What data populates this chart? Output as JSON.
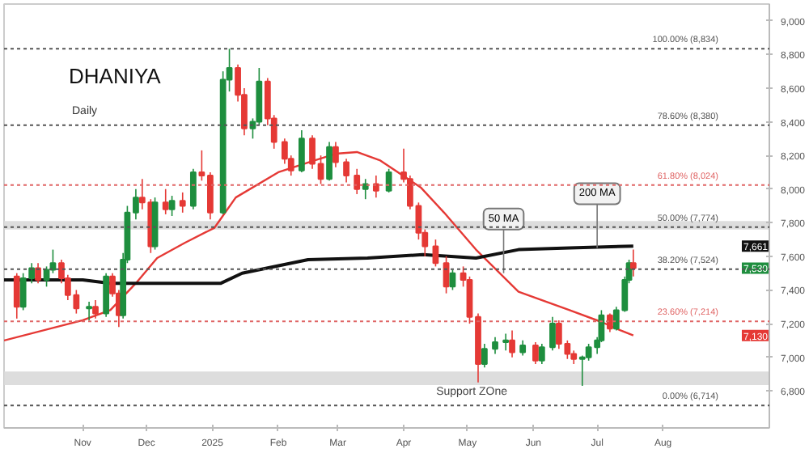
{
  "chart_data": {
    "type": "candlestick",
    "title": "DHANIYA",
    "subtitle": "Daily",
    "x": [
      "2024-10-01",
      "2024-10-04",
      "2024-10-08",
      "2024-10-11",
      "2024-10-15",
      "2024-10-18",
      "2024-10-22",
      "2024-10-25",
      "2024-10-29",
      "2024-11-04",
      "2024-11-07",
      "2024-11-12",
      "2024-11-15",
      "2024-11-18",
      "2024-11-20",
      "2024-11-22",
      "2024-11-26",
      "2024-11-29",
      "2024-12-03",
      "2024-12-05",
      "2024-12-10",
      "2024-12-13",
      "2024-12-18",
      "2024-12-23",
      "2024-12-27",
      "2024-12-31",
      "2025-01-06",
      "2025-01-09",
      "2025-01-13",
      "2025-01-16",
      "2025-01-20",
      "2025-01-23",
      "2025-01-27",
      "2025-01-30",
      "2025-02-04",
      "2025-02-07",
      "2025-02-12",
      "2025-02-17",
      "2025-02-21",
      "2025-02-25",
      "2025-02-28",
      "2025-03-05",
      "2025-03-10",
      "2025-03-14",
      "2025-03-19",
      "2025-03-25",
      "2025-04-01",
      "2025-04-04",
      "2025-04-08",
      "2025-04-11",
      "2025-04-16",
      "2025-04-21",
      "2025-04-24",
      "2025-04-29",
      "2025-05-02",
      "2025-05-06",
      "2025-05-09",
      "2025-05-14",
      "2025-05-19",
      "2025-05-22",
      "2025-05-27",
      "2025-06-02",
      "2025-06-05",
      "2025-06-10",
      "2025-06-13",
      "2025-06-17",
      "2025-06-20",
      "2025-06-24",
      "2025-06-27",
      "2025-07-01",
      "2025-07-03",
      "2025-07-07",
      "2025-07-10",
      "2025-07-14",
      "2025-07-16",
      "2025-07-18"
    ],
    "ohlc": [
      [
        7480,
        7500,
        7230,
        7300
      ],
      [
        7300,
        7500,
        7280,
        7470
      ],
      [
        7470,
        7560,
        7440,
        7530
      ],
      [
        7530,
        7560,
        7440,
        7460
      ],
      [
        7460,
        7540,
        7420,
        7520
      ],
      [
        7520,
        7640,
        7500,
        7560
      ],
      [
        7560,
        7580,
        7440,
        7470
      ],
      [
        7470,
        7490,
        7340,
        7370
      ],
      [
        7370,
        7400,
        7260,
        7290
      ],
      [
        7290,
        7330,
        7220,
        7300
      ],
      [
        7300,
        7340,
        7230,
        7260
      ],
      [
        7260,
        7500,
        7240,
        7480
      ],
      [
        7480,
        7500,
        7360,
        7380
      ],
      [
        7380,
        7400,
        7180,
        7250
      ],
      [
        7250,
        7620,
        7230,
        7580
      ],
      [
        7580,
        7900,
        7560,
        7860
      ],
      [
        7860,
        8000,
        7820,
        7950
      ],
      [
        7950,
        8060,
        7880,
        7920
      ],
      [
        7920,
        7940,
        7620,
        7660
      ],
      [
        7660,
        7950,
        7640,
        7920
      ],
      [
        7920,
        8000,
        7850,
        7880
      ],
      [
        7880,
        7960,
        7840,
        7930
      ],
      [
        7930,
        7980,
        7860,
        7900
      ],
      [
        7900,
        8120,
        7880,
        8100
      ],
      [
        8100,
        8230,
        8050,
        8080
      ],
      [
        8080,
        8100,
        7820,
        7860
      ],
      [
        7860,
        8700,
        7850,
        8650
      ],
      [
        8650,
        8834,
        8580,
        8720
      ],
      [
        8720,
        8740,
        8520,
        8560
      ],
      [
        8560,
        8600,
        8320,
        8360
      ],
      [
        8360,
        8420,
        8300,
        8400
      ],
      [
        8400,
        8720,
        8380,
        8640
      ],
      [
        8640,
        8660,
        8380,
        8420
      ],
      [
        8420,
        8440,
        8240,
        8280
      ],
      [
        8280,
        8300,
        8150,
        8180
      ],
      [
        8180,
        8200,
        8080,
        8110
      ],
      [
        8110,
        8350,
        8100,
        8300
      ],
      [
        8300,
        8320,
        8120,
        8150
      ],
      [
        8150,
        8200,
        8030,
        8060
      ],
      [
        8060,
        8280,
        8050,
        8250
      ],
      [
        8250,
        8280,
        8130,
        8160
      ],
      [
        8160,
        8180,
        8040,
        8080
      ],
      [
        8080,
        8120,
        7970,
        8000
      ],
      [
        8000,
        8060,
        7940,
        8030
      ],
      [
        8030,
        8080,
        7950,
        7990
      ],
      [
        7990,
        8120,
        7980,
        8100
      ],
      [
        8100,
        8240,
        8040,
        8060
      ],
      [
        8060,
        8080,
        7880,
        7900
      ],
      [
        7900,
        7920,
        7700,
        7740
      ],
      [
        7740,
        7760,
        7600,
        7660
      ],
      [
        7660,
        7700,
        7540,
        7560
      ],
      [
        7560,
        7600,
        7380,
        7420
      ],
      [
        7420,
        7520,
        7400,
        7500
      ],
      [
        7500,
        7540,
        7420,
        7460
      ],
      [
        7460,
        7480,
        7200,
        7240
      ],
      [
        7240,
        7260,
        6850,
        6960
      ],
      [
        6960,
        7080,
        6940,
        7050
      ],
      [
        7050,
        7120,
        7020,
        7090
      ],
      [
        7090,
        7140,
        7040,
        7100
      ],
      [
        7100,
        7160,
        7000,
        7030
      ],
      [
        7030,
        7100,
        7010,
        7070
      ],
      [
        7070,
        7090,
        6960,
        6980
      ],
      [
        6980,
        7080,
        6960,
        7060
      ],
      [
        7060,
        7240,
        7040,
        7200
      ],
      [
        7200,
        7220,
        7050,
        7080
      ],
      [
        7080,
        7100,
        6990,
        7020
      ],
      [
        7020,
        7040,
        6960,
        6990
      ],
      [
        6990,
        7010,
        6830,
        7000
      ],
      [
        7000,
        7080,
        6980,
        7060
      ],
      [
        7060,
        7120,
        7020,
        7100
      ],
      [
        7100,
        7280,
        7090,
        7250
      ],
      [
        7250,
        7260,
        7150,
        7170
      ],
      [
        7170,
        7300,
        7160,
        7280
      ],
      [
        7280,
        7480,
        7270,
        7460
      ],
      [
        7460,
        7580,
        7440,
        7560
      ],
      [
        7560,
        7640,
        7480,
        7530
      ]
    ],
    "series": [
      {
        "type": "line",
        "color": "#e53935",
        "x": [
          "2024-09-25",
          "2024-11-01",
          "2024-11-14",
          "2024-11-26",
          "2024-12-06",
          "2024-12-19",
          "2025-01-02",
          "2025-01-12",
          "2025-02-01",
          "2025-02-18",
          "2025-02-28",
          "2025-03-10",
          "2025-03-21",
          "2025-04-09",
          "2025-04-20",
          "2025-05-05",
          "2025-05-25",
          "2025-06-18",
          "2025-07-03",
          "2025-07-12",
          "2025-07-18"
        ],
        "values": [
          7100,
          7220,
          7280,
          7440,
          7590,
          7680,
          7770,
          7950,
          8100,
          8170,
          8210,
          8220,
          8170,
          8010,
          7860,
          7640,
          7390,
          7280,
          7210,
          7160,
          7130
        ]
      },
      {
        "type": "line",
        "color": "#111111",
        "x": [
          "2024-09-25",
          "2024-11-01",
          "2024-11-14",
          "2024-11-28",
          "2025-01-05",
          "2025-01-15",
          "2025-02-15",
          "2025-03-15",
          "2025-04-10",
          "2025-05-05",
          "2025-05-25",
          "2025-06-18",
          "2025-07-18"
        ],
        "values": [
          7460,
          7460,
          7440,
          7440,
          7440,
          7500,
          7580,
          7590,
          7610,
          7590,
          7640,
          7650,
          7661
        ]
      }
    ],
    "xlim": [
      "2024-09-25",
      "2025-09-20"
    ],
    "xticks": [
      {
        "value": "2024-11-01",
        "label": "Nov"
      },
      {
        "value": "2024-12-01",
        "label": "Dec"
      },
      {
        "value": "2025-01-01",
        "label": "2025"
      },
      {
        "value": "2025-02-01",
        "label": "Feb"
      },
      {
        "value": "2025-03-01",
        "label": "Mar"
      },
      {
        "value": "2025-04-01",
        "label": "Apr"
      },
      {
        "value": "2025-05-01",
        "label": "May"
      },
      {
        "value": "2025-06-01",
        "label": "Jun"
      },
      {
        "value": "2025-07-01",
        "label": "Jul"
      },
      {
        "value": "2025-08-01",
        "label": "Aug"
      }
    ],
    "ylim": [
      6580,
      9100
    ],
    "yticks": [
      {
        "value": 6800,
        "label": "6,800"
      },
      {
        "value": 7000,
        "label": "7,000"
      },
      {
        "value": 7200,
        "label": "7,200"
      },
      {
        "value": 7400,
        "label": "7,400"
      },
      {
        "value": 7600,
        "label": "7,600"
      },
      {
        "value": 7800,
        "label": "7,800"
      },
      {
        "value": 8000,
        "label": "8,000"
      },
      {
        "value": 8200,
        "label": "8,200"
      },
      {
        "value": 8400,
        "label": "8,400"
      },
      {
        "value": 8600,
        "label": "8,600"
      },
      {
        "value": 8800,
        "label": "8,800"
      },
      {
        "value": 9000,
        "label": "9,000"
      }
    ],
    "ref_lines": [
      {
        "axis": "y",
        "value": 8834,
        "label": "100.00% (8,834)",
        "color": "#555555",
        "line_style": "dotted"
      },
      {
        "axis": "y",
        "value": 8380,
        "label": "78.60% (8,380)",
        "color": "#555555",
        "line_style": "dotted"
      },
      {
        "axis": "y",
        "value": 8024,
        "label": "61.80% (8,024)",
        "color": "#e06666",
        "line_style": "dotted"
      },
      {
        "axis": "y",
        "value": 7774,
        "label": "50.00% (7,774)",
        "color": "#555555",
        "line_style": "dotted"
      },
      {
        "axis": "y",
        "value": 7524,
        "label": "38.20% (7,524)",
        "color": "#555555",
        "line_style": "dotted"
      },
      {
        "axis": "y",
        "value": 7214,
        "label": "23.60% (7,214)",
        "color": "#e06666",
        "line_style": "dotted"
      },
      {
        "axis": "y",
        "value": 6714,
        "label": "0.00% (6,714)",
        "color": "#555555",
        "line_style": "dotted"
      }
    ],
    "bands": [
      {
        "axis": "y",
        "from": 7760,
        "to": 7810,
        "color": "#d9d9d9"
      },
      {
        "axis": "y",
        "from": 6835,
        "to": 6915,
        "label": "Support ZOne",
        "color": "#d9d9d9"
      }
    ],
    "annotations": [
      {
        "text": "50 MA",
        "x": "2025-05-18",
        "y": 7500
      },
      {
        "text": "200 MA",
        "x": "2025-07-01",
        "y": 7650
      },
      {
        "text": "7,661",
        "y": 7661
      },
      {
        "text": "7,530",
        "y": 7530
      },
      {
        "text": "7,130",
        "y": 7130
      }
    ]
  }
}
